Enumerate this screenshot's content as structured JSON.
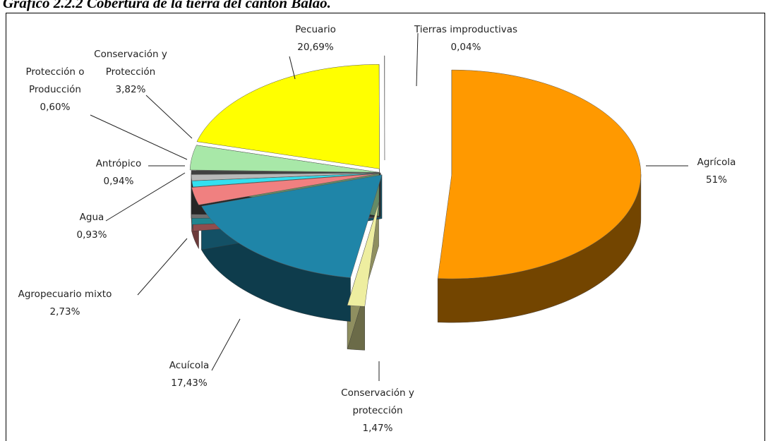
{
  "chart_data": {
    "type": "pie",
    "title": "Gráfico 2.2.2 Cobertura de la tierra del cantón Balao.",
    "categories": [
      "Agrícola",
      "Conservación y protección",
      "Acuícola",
      "Agropecuario mixto",
      "Agua",
      "Antrópico",
      "Protección o Producción",
      "Conservación y Protección",
      "Pecuario",
      "Tierras improductivas"
    ],
    "values": [
      51,
      1.47,
      17.43,
      2.73,
      0.93,
      0.94,
      0.6,
      3.82,
      20.69,
      0.04
    ],
    "value_labels": [
      "51%",
      "1,47%",
      "17,43%",
      "2,73%",
      "0,93%",
      "0,94%",
      "0,60%",
      "3,82%",
      "20,69%",
      "0,04%"
    ],
    "colors": [
      "#ff9900",
      "#eeeea0",
      "#1f85a8",
      "#f08080",
      "#33e0f0",
      "#b8b8b8",
      "#404040",
      "#a8e8a8",
      "#ffff00",
      "#ffffff"
    ]
  }
}
